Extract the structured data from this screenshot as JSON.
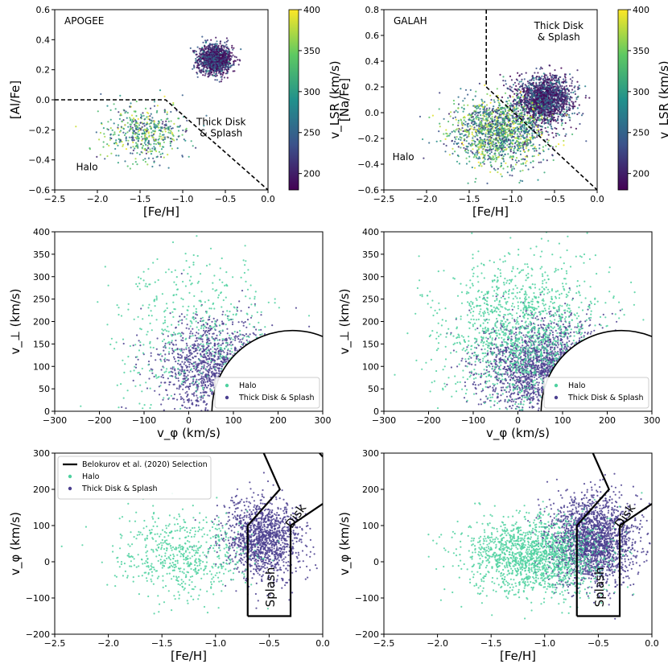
{
  "figure": {
    "colors": {
      "halo": "#4fd1a0",
      "disk": "#4b3f8f",
      "colormap": [
        "#440154",
        "#3b528b",
        "#21918c",
        "#5ec962",
        "#fde725"
      ]
    }
  },
  "chart_data": [
    {
      "type": "scatter",
      "panel": "al-fe-apogee",
      "xlabel": "[Fe/H]",
      "ylabel": "[Al/Fe]",
      "xlim": [
        -2.5,
        0.0
      ],
      "ylim": [
        -0.6,
        0.6
      ],
      "xticks": [
        "−2.5",
        "−2.0",
        "−1.5",
        "−1.0",
        "−0.5",
        "0.0"
      ],
      "yticks": [
        "−0.6",
        "−0.4",
        "−0.2",
        "0.0",
        "0.2",
        "0.4",
        "0.6"
      ],
      "colorbar": {
        "label": "v_LSR (km/s)",
        "range": [
          180,
          400
        ],
        "ticks": [
          "200",
          "250",
          "300",
          "350",
          "400"
        ]
      },
      "annotations": {
        "survey": "APOGEE",
        "disk": [
          "Thick Disk",
          "& Splash"
        ],
        "halo": "Halo"
      },
      "selection_line": [
        [
          -2.5,
          0.0
        ],
        [
          -1.2,
          0.0
        ],
        [
          0.0,
          -0.6
        ]
      ],
      "populations": [
        {
          "group": "disk",
          "center": [
            -0.62,
            0.27
          ],
          "spread": [
            0.1,
            0.05
          ],
          "count": 1200
        },
        {
          "group": "halo",
          "center": [
            -1.45,
            -0.22
          ],
          "spread": [
            0.25,
            0.09
          ],
          "count": 520
        }
      ]
    },
    {
      "type": "scatter",
      "panel": "na-fe-galah",
      "xlabel": "[Fe/H]",
      "ylabel": "[Na/Fe]",
      "xlim": [
        -2.5,
        0.0
      ],
      "ylim": [
        -0.6,
        0.8
      ],
      "xticks": [
        "−2.5",
        "−2.0",
        "−1.5",
        "−1.0",
        "−0.5",
        "0.0"
      ],
      "yticks": [
        "−0.6",
        "−0.4",
        "−0.2",
        "0.0",
        "0.2",
        "0.4",
        "0.6",
        "0.8"
      ],
      "colorbar": {
        "label": "v_LSR (km/s)",
        "range": [
          180,
          400
        ],
        "ticks": [
          "200",
          "250",
          "300",
          "350",
          "400"
        ]
      },
      "annotations": {
        "survey": "GALAH",
        "disk": [
          "Thick Disk",
          "& Splash"
        ],
        "halo": "Halo"
      },
      "selection_line": [
        [
          -1.3,
          0.8
        ],
        [
          -1.3,
          0.2
        ],
        [
          0.0,
          -0.6
        ]
      ],
      "populations": [
        {
          "group": "disk",
          "center": [
            -0.62,
            0.1
          ],
          "spread": [
            0.16,
            0.09
          ],
          "count": 1800
        },
        {
          "group": "halo",
          "center": [
            -1.15,
            -0.15
          ],
          "spread": [
            0.27,
            0.13
          ],
          "count": 1500
        }
      ]
    },
    {
      "type": "scatter",
      "panel": "toomre-apogee",
      "xlabel": "v_φ (km/s)",
      "ylabel": "v_⊥ (km/s)",
      "xlim": [
        -300,
        300
      ],
      "ylim": [
        0,
        400
      ],
      "xticks": [
        "−300",
        "−200",
        "−100",
        "0",
        "100",
        "200",
        "300"
      ],
      "yticks": [
        "0",
        "50",
        "100",
        "150",
        "200",
        "250",
        "300",
        "350",
        "400"
      ],
      "legend": {
        "placement": "lower-right",
        "entries": [
          "Halo",
          "Thick Disk & Splash"
        ]
      },
      "selection_circle": {
        "center": [
          232,
          0
        ],
        "radius": 180
      },
      "populations": [
        {
          "group": "disk",
          "center": [
            60,
            95
          ],
          "spread": [
            65,
            55
          ],
          "count": 1300
        },
        {
          "group": "halo",
          "center": [
            20,
            175
          ],
          "spread": [
            90,
            85
          ],
          "count": 500
        }
      ]
    },
    {
      "type": "scatter",
      "panel": "toomre-galah",
      "xlabel": "v_φ (km/s)",
      "ylabel": "v_⊥ (km/s)",
      "xlim": [
        -300,
        300
      ],
      "ylim": [
        0,
        400
      ],
      "xticks": [
        "−300",
        "−200",
        "−100",
        "0",
        "100",
        "200",
        "300"
      ],
      "yticks": [
        "0",
        "50",
        "100",
        "150",
        "200",
        "250",
        "300",
        "350",
        "400"
      ],
      "legend": {
        "placement": "lower-right",
        "entries": [
          "Halo",
          "Thick Disk & Splash"
        ]
      },
      "selection_circle": {
        "center": [
          232,
          0
        ],
        "radius": 180
      },
      "populations": [
        {
          "group": "disk",
          "center": [
            60,
            95
          ],
          "spread": [
            70,
            55
          ],
          "count": 2000
        },
        {
          "group": "halo",
          "center": [
            10,
            170
          ],
          "spread": [
            90,
            85
          ],
          "count": 1500
        }
      ]
    },
    {
      "type": "scatter",
      "panel": "vphi-feh-apogee",
      "xlabel": "[Fe/H]",
      "ylabel": "v_φ (km/s)",
      "xlim": [
        -2.5,
        0.0
      ],
      "ylim": [
        -200,
        300
      ],
      "xticks": [
        "−2.5",
        "−2.0",
        "−1.5",
        "−1.0",
        "−0.5",
        "0.0"
      ],
      "yticks": [
        "−200",
        "−100",
        "0",
        "100",
        "200",
        "300"
      ],
      "legend": {
        "placement": "upper-left",
        "entries": [
          "Belokurov et al. (2020) Selection",
          "Halo",
          "Thick Disk & Splash"
        ]
      },
      "region_labels": {
        "disk": "Disk",
        "splash": "Splash"
      },
      "selection_lines": [
        [
          [
            -0.7,
            -150
          ],
          [
            -0.7,
            100
          ],
          [
            -0.4,
            200
          ],
          [
            -0.55,
            300
          ]
        ],
        [
          [
            -0.7,
            -150
          ],
          [
            -0.3,
            -150
          ],
          [
            -0.3,
            100
          ],
          [
            0.0,
            160
          ]
        ],
        [
          [
            -0.03,
            300
          ],
          [
            0.0,
            290
          ]
        ]
      ],
      "populations": [
        {
          "group": "disk",
          "center": [
            -0.55,
            60
          ],
          "spread": [
            0.18,
            55
          ],
          "count": 1300
        },
        {
          "group": "halo",
          "center": [
            -1.3,
            20
          ],
          "spread": [
            0.32,
            55
          ],
          "count": 600
        }
      ]
    },
    {
      "type": "scatter",
      "panel": "vphi-feh-galah",
      "xlabel": "[Fe/H]",
      "ylabel": "v_φ (km/s)",
      "xlim": [
        -2.5,
        0.0
      ],
      "ylim": [
        -200,
        300
      ],
      "xticks": [
        "−2.5",
        "−2.0",
        "−1.5",
        "−1.0",
        "−0.5",
        "0.0"
      ],
      "yticks": [
        "−200",
        "−100",
        "0",
        "100",
        "200",
        "300"
      ],
      "region_labels": {
        "disk": "Disk",
        "splash": "Splash"
      },
      "selection_lines": [
        [
          [
            -0.7,
            -150
          ],
          [
            -0.7,
            100
          ],
          [
            -0.4,
            200
          ],
          [
            -0.55,
            300
          ]
        ],
        [
          [
            -0.7,
            -150
          ],
          [
            -0.3,
            -150
          ],
          [
            -0.3,
            100
          ],
          [
            0.0,
            160
          ]
        ]
      ],
      "populations": [
        {
          "group": "disk",
          "center": [
            -0.55,
            60
          ],
          "spread": [
            0.2,
            60
          ],
          "count": 2000
        },
        {
          "group": "halo",
          "center": [
            -1.1,
            15
          ],
          "spread": [
            0.32,
            55
          ],
          "count": 1600
        }
      ]
    }
  ]
}
